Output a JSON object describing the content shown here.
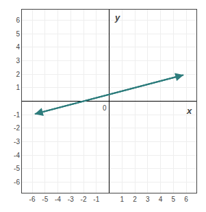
{
  "chart_data": {
    "type": "line",
    "xlabel": "x",
    "ylabel": "y",
    "x": [
      -5.8,
      5.8
    ],
    "values": [
      -0.95,
      1.95
    ],
    "color": "#2e7d7d",
    "xlim": [
      -6.8,
      6.8
    ],
    "ylim": [
      -6.8,
      6.8
    ],
    "xticks": [
      -6,
      -5,
      -4,
      -3,
      -2,
      -1,
      1,
      2,
      3,
      4,
      5,
      6
    ],
    "yticks": [
      -6,
      -5,
      -4,
      -3,
      -2,
      -1,
      1,
      2,
      3,
      4,
      5,
      6
    ],
    "annotations": [
      {
        "text": "0",
        "x": 0,
        "y": 0
      }
    ],
    "grid": true
  }
}
